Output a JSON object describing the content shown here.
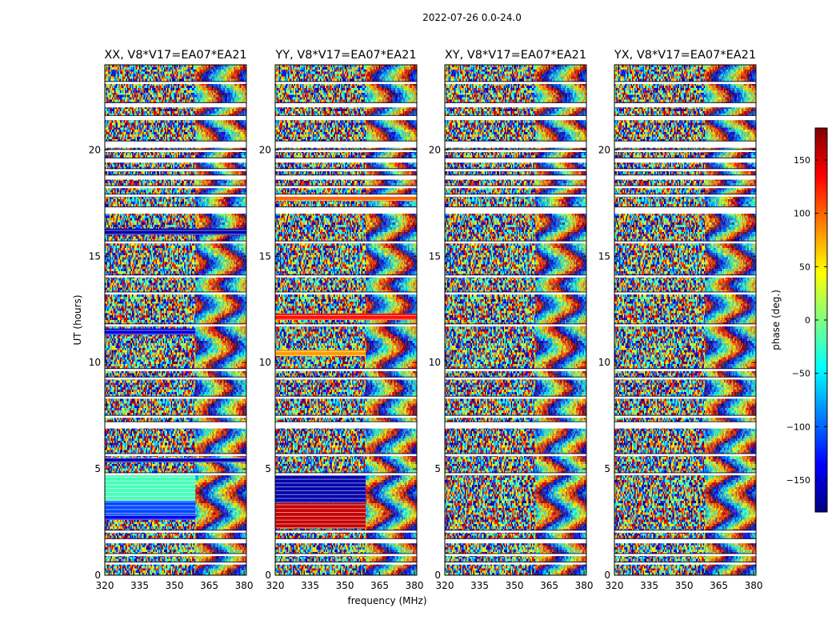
{
  "figure": {
    "suptitle": "2022-07-26 0.0-24.0",
    "xlabel": "frequency (MHz)",
    "ylabel": "UT (hours)"
  },
  "chart_data": [
    {
      "type": "heatmap",
      "title": "XX, V8*V17=EA07*EA21",
      "xlabel": "frequency (MHz)",
      "ylabel": "UT (hours)",
      "xlim": [
        320,
        381
      ],
      "ylim": [
        0,
        24
      ],
      "xticks": [
        320,
        335,
        350,
        365,
        380
      ],
      "yticks": [
        0,
        5,
        10,
        15,
        20
      ],
      "blocks": [
        {
          "x": [
            320,
            359
          ],
          "y": [
            2.7,
            3.5
          ],
          "value": -110
        },
        {
          "x": [
            320,
            359
          ],
          "y": [
            3.5,
            4.7
          ],
          "value": -20
        },
        {
          "x": [
            320,
            359
          ],
          "y": [
            2.6,
            2.8
          ],
          "value": -140
        },
        {
          "x": [
            320,
            359
          ],
          "y": [
            11.3,
            11.6
          ],
          "value": -150
        },
        {
          "x": [
            320,
            381
          ],
          "y": [
            5.3,
            5.5
          ],
          "value": -160
        },
        {
          "x": [
            320,
            381
          ],
          "y": [
            16.0,
            16.3
          ],
          "value": -165
        }
      ]
    },
    {
      "type": "heatmap",
      "title": "YY, V8*V17=EA07*EA21",
      "xlabel": "frequency (MHz)",
      "ylabel": "",
      "xlim": [
        320,
        381
      ],
      "ylim": [
        0,
        24
      ],
      "xticks": [
        320,
        335,
        350,
        365,
        380
      ],
      "yticks": [
        0,
        5,
        10,
        15,
        20
      ],
      "blocks": [
        {
          "x": [
            320,
            359
          ],
          "y": [
            2.2,
            3.4
          ],
          "value": 155
        },
        {
          "x": [
            320,
            359
          ],
          "y": [
            3.4,
            4.7
          ],
          "value": -165
        },
        {
          "x": [
            320,
            359
          ],
          "y": [
            10.3,
            10.6
          ],
          "value": 80
        },
        {
          "x": [
            320,
            381
          ],
          "y": [
            17.6,
            17.9
          ],
          "value": 100
        },
        {
          "x": [
            320,
            381
          ],
          "y": [
            12.0,
            12.3
          ],
          "value": 130
        }
      ]
    },
    {
      "type": "heatmap",
      "title": "XY, V8*V17=EA07*EA21",
      "xlabel": "frequency (MHz)",
      "ylabel": "",
      "xlim": [
        320,
        381
      ],
      "ylim": [
        0,
        24
      ],
      "xticks": [
        320,
        335,
        350,
        365,
        380
      ],
      "yticks": [
        0,
        5,
        10,
        15,
        20
      ],
      "blocks": []
    },
    {
      "type": "heatmap",
      "title": "YX, V8*V17=EA07*EA21",
      "xlabel": "frequency (MHz)",
      "ylabel": "",
      "xlim": [
        320,
        381
      ],
      "ylim": [
        0,
        24
      ],
      "xticks": [
        320,
        335,
        350,
        365,
        380
      ],
      "yticks": [
        0,
        5,
        10,
        15,
        20
      ],
      "blocks": []
    }
  ],
  "colorbar": {
    "label": "phase (deg.)",
    "range": [
      -180,
      180
    ],
    "ticks": [
      -150,
      -100,
      -50,
      0,
      50,
      100,
      150
    ],
    "colormap": [
      "#000080",
      "#0000ff",
      "#0080ff",
      "#00ffff",
      "#80ff80",
      "#ffff00",
      "#ff8000",
      "#ff0000",
      "#800000"
    ]
  },
  "data_gaps_hours": [
    [
      0.5,
      0.6
    ],
    [
      0.9,
      1.0
    ],
    [
      1.5,
      1.7
    ],
    [
      2.0,
      2.1
    ],
    [
      4.7,
      4.8
    ],
    [
      5.6,
      5.7
    ],
    [
      6.9,
      7.2
    ],
    [
      7.4,
      7.5
    ],
    [
      8.3,
      8.4
    ],
    [
      9.2,
      9.3
    ],
    [
      9.6,
      9.7
    ],
    [
      11.7,
      11.8
    ],
    [
      13.2,
      13.3
    ],
    [
      14.0,
      14.1
    ],
    [
      15.6,
      15.7
    ],
    [
      17.0,
      17.3
    ],
    [
      17.8,
      17.9
    ],
    [
      18.2,
      18.3
    ],
    [
      18.6,
      18.8
    ],
    [
      19.0,
      19.1
    ],
    [
      19.4,
      19.6
    ],
    [
      19.9,
      20.0
    ],
    [
      20.1,
      20.4
    ],
    [
      21.4,
      21.6
    ],
    [
      22.0,
      22.2
    ],
    [
      23.1,
      23.2
    ]
  ]
}
